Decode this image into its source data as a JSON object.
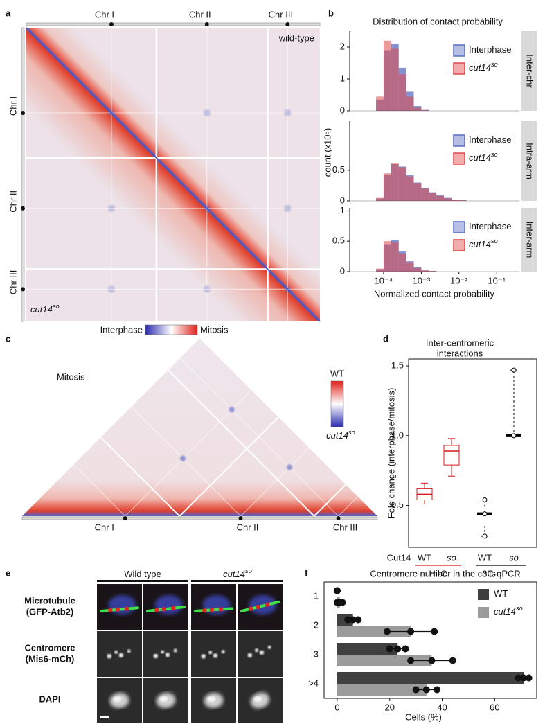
{
  "panel_labels": [
    "a",
    "b",
    "c",
    "d",
    "e",
    "f"
  ],
  "panel_a": {
    "chromosomes": [
      "Chr I",
      "Chr II",
      "Chr III"
    ],
    "upper_label": "wild-type",
    "lower_label": {
      "text": "cut14",
      "sup": "so"
    },
    "colorbar": [
      "Interphase",
      "Mitosis"
    ]
  },
  "panel_c": {
    "title": "Mitosis",
    "chromosomes": [
      "Chr I",
      "Chr II",
      "Chr III"
    ],
    "colorbar_top": "WT",
    "colorbar_bottom": {
      "text": "cut14",
      "sup": "so"
    }
  },
  "panel_e": {
    "columns": [
      {
        "text": "Wild type"
      },
      {
        "text": "cut14",
        "sup": "so"
      }
    ],
    "rows": [
      {
        "label": "Microtubule",
        "sub": "(GFP-Atb2)",
        "color": "#1d8a3a"
      },
      {
        "label": "Centromere",
        "sub": "(Mis6-mCh)",
        "color": "#e02424"
      },
      {
        "label": "DAPI",
        "color": "#3a46b4"
      }
    ]
  },
  "chart_data": [
    {
      "type": "histogram",
      "title": "Distribution of contact probability",
      "xlabel": "Normalized contact probability",
      "ylabel": "count (x10⁵)",
      "xscale": "log",
      "xlim": [
        1.26e-05,
        0.4
      ],
      "xticks": [
        {
          "value": 0.0001,
          "label": "10⁻⁴"
        },
        {
          "value": 0.001,
          "label": "10⁻³"
        },
        {
          "value": 0.01,
          "label": "10⁻²"
        },
        {
          "value": 0.1,
          "label": "10⁻¹"
        }
      ],
      "bins": [
        3.98e-05,
        6.31e-05,
        0.0001,
        0.000158,
        0.000251,
        0.000398,
        0.000631,
        0.001,
        0.00158,
        0.00251,
        0.00398,
        0.00631,
        0.01,
        0.0158
      ],
      "facets": [
        {
          "name": "Inter-chr",
          "ylim": [
            0,
            2.5
          ],
          "yticks": [
            0,
            1,
            2
          ],
          "series": [
            {
              "name": "Interphase",
              "color": "#5b6fc0",
              "values": [
                0,
                0.35,
                1.9,
                2.1,
                1.35,
                0.6,
                0.15,
                0.03,
                0,
                0,
                0,
                0,
                0
              ]
            },
            {
              "name": "cut14",
              "name_sup": "so",
              "color": "#e04848",
              "values": [
                0,
                0.45,
                2.2,
                1.95,
                1.15,
                0.45,
                0.1,
                0.02,
                0,
                0,
                0,
                0,
                0
              ]
            }
          ]
        },
        {
          "name": "Intra-arm",
          "ylim": [
            0,
            1.3
          ],
          "yticks": [
            0,
            0.5
          ],
          "series": [
            {
              "name": "Interphase",
              "color": "#5b6fc0",
              "values": [
                0,
                0.04,
                0.42,
                0.6,
                0.56,
                0.42,
                0.3,
                0.21,
                0.14,
                0.09,
                0.05,
                0.02,
                0.01
              ]
            },
            {
              "name": "cut14",
              "name_sup": "so",
              "color": "#e04848",
              "values": [
                0,
                0.05,
                0.45,
                0.62,
                0.55,
                0.4,
                0.29,
                0.2,
                0.13,
                0.08,
                0.04,
                0.02,
                0.01
              ]
            }
          ]
        },
        {
          "name": "Inter-arm",
          "ylim": [
            0,
            1.05
          ],
          "yticks": [
            0,
            0.5,
            1
          ],
          "series": [
            {
              "name": "Interphase",
              "color": "#5b6fc0",
              "values": [
                0,
                0.04,
                0.45,
                0.52,
                0.33,
                0.17,
                0.07,
                0.02,
                0.01,
                0,
                0,
                0,
                0
              ]
            },
            {
              "name": "cut14",
              "name_sup": "so",
              "color": "#e04848",
              "values": [
                0,
                0.05,
                0.5,
                0.48,
                0.3,
                0.15,
                0.06,
                0.02,
                0.01,
                0,
                0,
                0,
                0
              ]
            }
          ]
        }
      ]
    },
    {
      "type": "box",
      "title": [
        "Inter-centromeric",
        "interactions"
      ],
      "ylabel": "Fold change (interphase/mitosis)",
      "ylim": [
        0.2,
        1.55
      ],
      "yticks": [
        0.5,
        {
          "value": 1,
          "label": "1.0"
        },
        1.5
      ],
      "row_label": "Cut14",
      "categories": [
        "WT",
        "so",
        "WT",
        "so"
      ],
      "series": [
        {
          "name": "Hi-C",
          "color": "#d7191c",
          "boxes": [
            {
              "min": 0.51,
              "q1": 0.54,
              "median": 0.58,
              "q3": 0.62,
              "max": 0.66
            },
            {
              "min": 0.71,
              "q1": 0.79,
              "median": 0.89,
              "q3": 0.93,
              "max": 0.98
            }
          ]
        },
        {
          "name": "3C-qPCR",
          "color": "#000000",
          "whisker_dash": true,
          "boxes": [
            {
              "min": 0.28,
              "q1": 0.36,
              "median": 0.44,
              "q3": 0.49,
              "max": 0.54
            },
            {
              "min": 1.0,
              "q1": 1.0,
              "median": 1.0,
              "q3": 1.0,
              "max": 1.47
            }
          ],
          "points": [
            [
              0.28,
              0.44,
              0.54
            ],
            [
              1.0,
              1.0,
              1.47
            ]
          ]
        }
      ]
    },
    {
      "type": "bar",
      "orientation": "horizontal",
      "title": "Centromere number in the cells",
      "categories": [
        "1",
        "2",
        "3",
        ">4"
      ],
      "xlabel": "Cells (%)",
      "xlim": [
        -5,
        76
      ],
      "xticks": [
        0,
        20,
        40,
        60
      ],
      "legend": "upper right",
      "series": [
        {
          "name": "WT",
          "color": "#404040",
          "values": [
            0,
            6,
            23,
            71
          ],
          "errors": [
            0,
            2,
            3,
            2
          ]
        },
        {
          "name": "cut14",
          "name_sup": "so",
          "color": "#9b9b9b",
          "values": [
            1,
            28,
            36,
            34
          ],
          "errors": [
            1,
            9,
            8,
            4
          ]
        }
      ]
    }
  ]
}
